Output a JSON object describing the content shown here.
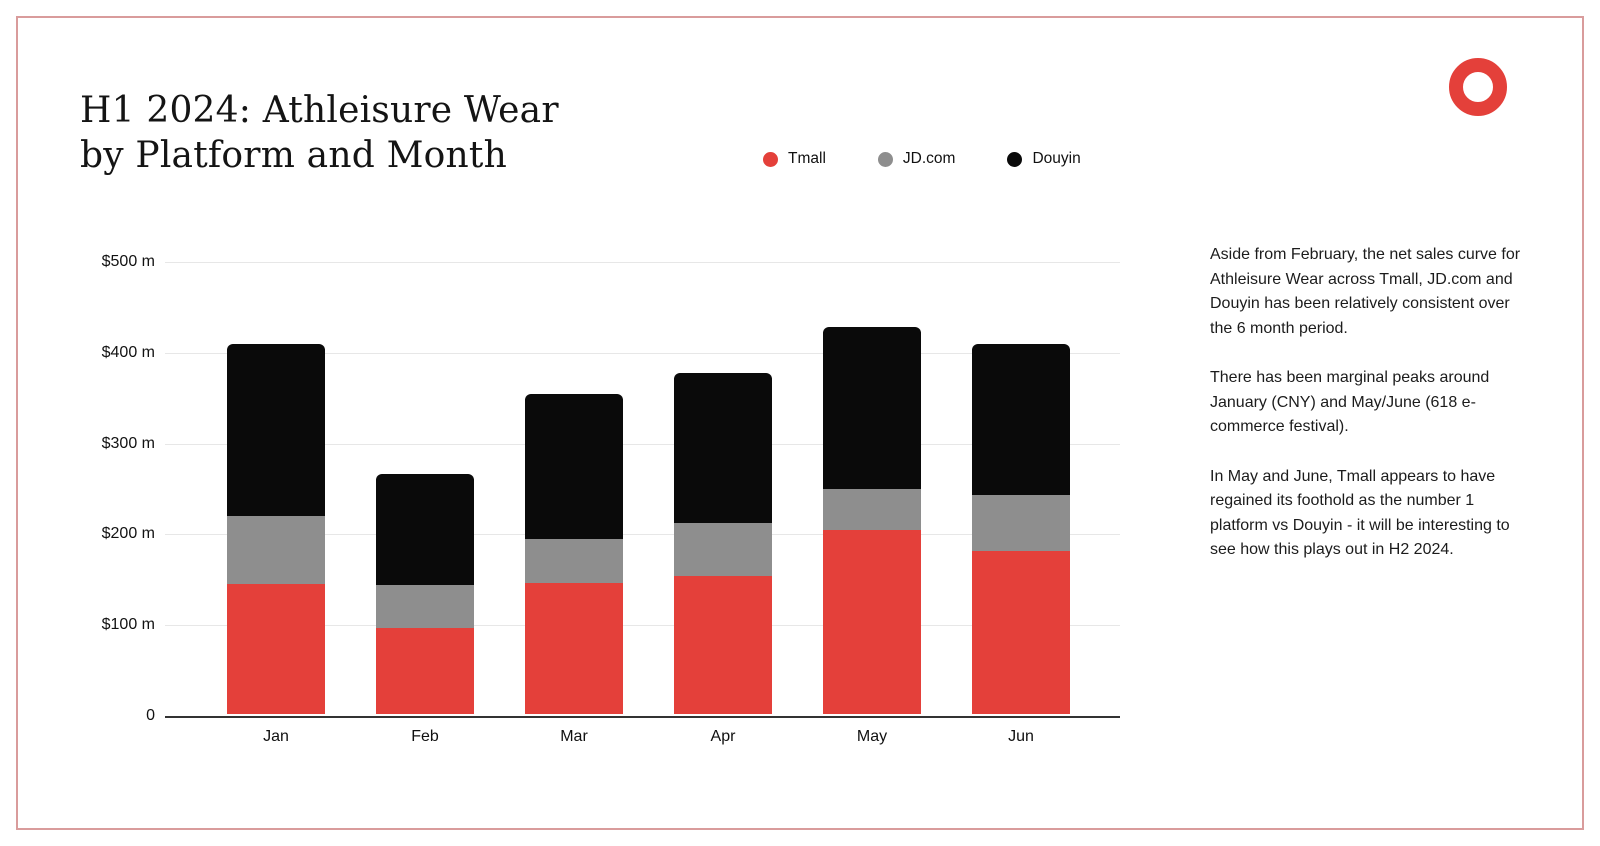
{
  "header": {
    "title_line1": "H1 2024: Athleisure Wear",
    "title_line2": "by Platform and Month"
  },
  "legend": [
    {
      "label": "Tmall",
      "color": "#E4403A"
    },
    {
      "label": "JD.com",
      "color": "#8E8E8E"
    },
    {
      "label": "Douyin",
      "color": "#0A0A0A"
    }
  ],
  "chart_data": {
    "type": "bar",
    "stacked": true,
    "title": "H1 2024: Athleisure Wear by Platform and Month",
    "categories": [
      "Jan",
      "Feb",
      "Mar",
      "Apr",
      "May",
      "Jun"
    ],
    "series": [
      {
        "name": "Tmall",
        "color": "#E4403A",
        "values": [
          143,
          95,
          144,
          152,
          203,
          180
        ]
      },
      {
        "name": "JD.com",
        "color": "#8E8E8E",
        "values": [
          75,
          47,
          49,
          58,
          45,
          61
        ]
      },
      {
        "name": "Douyin",
        "color": "#0A0A0A",
        "values": [
          190,
          122,
          160,
          166,
          178,
          166
        ]
      }
    ],
    "yticks": [
      "$500 m",
      "$400 m",
      "$300 m",
      "$200 m",
      "$100 m",
      "0"
    ],
    "ylim": [
      0,
      500
    ],
    "grid": true,
    "legend_position": "top-center"
  },
  "commentary": {
    "paragraphs": [
      "Aside from February, the net sales curve for Athleisure Wear across Tmall, JD.com and Douyin has been relatively consistent over the 6 month period.",
      "There has been marginal peaks around January (CNY) and May/June (618 e-commerce festival).",
      "In May and June, Tmall appears to have regained its foothold as the number 1 platform vs Douyin - it will be interesting to see how this plays out in H2 2024."
    ]
  },
  "colors": {
    "accent_red": "#E4403A",
    "border_pink": "#D99C9C",
    "gridline": "#E7E7E7"
  }
}
